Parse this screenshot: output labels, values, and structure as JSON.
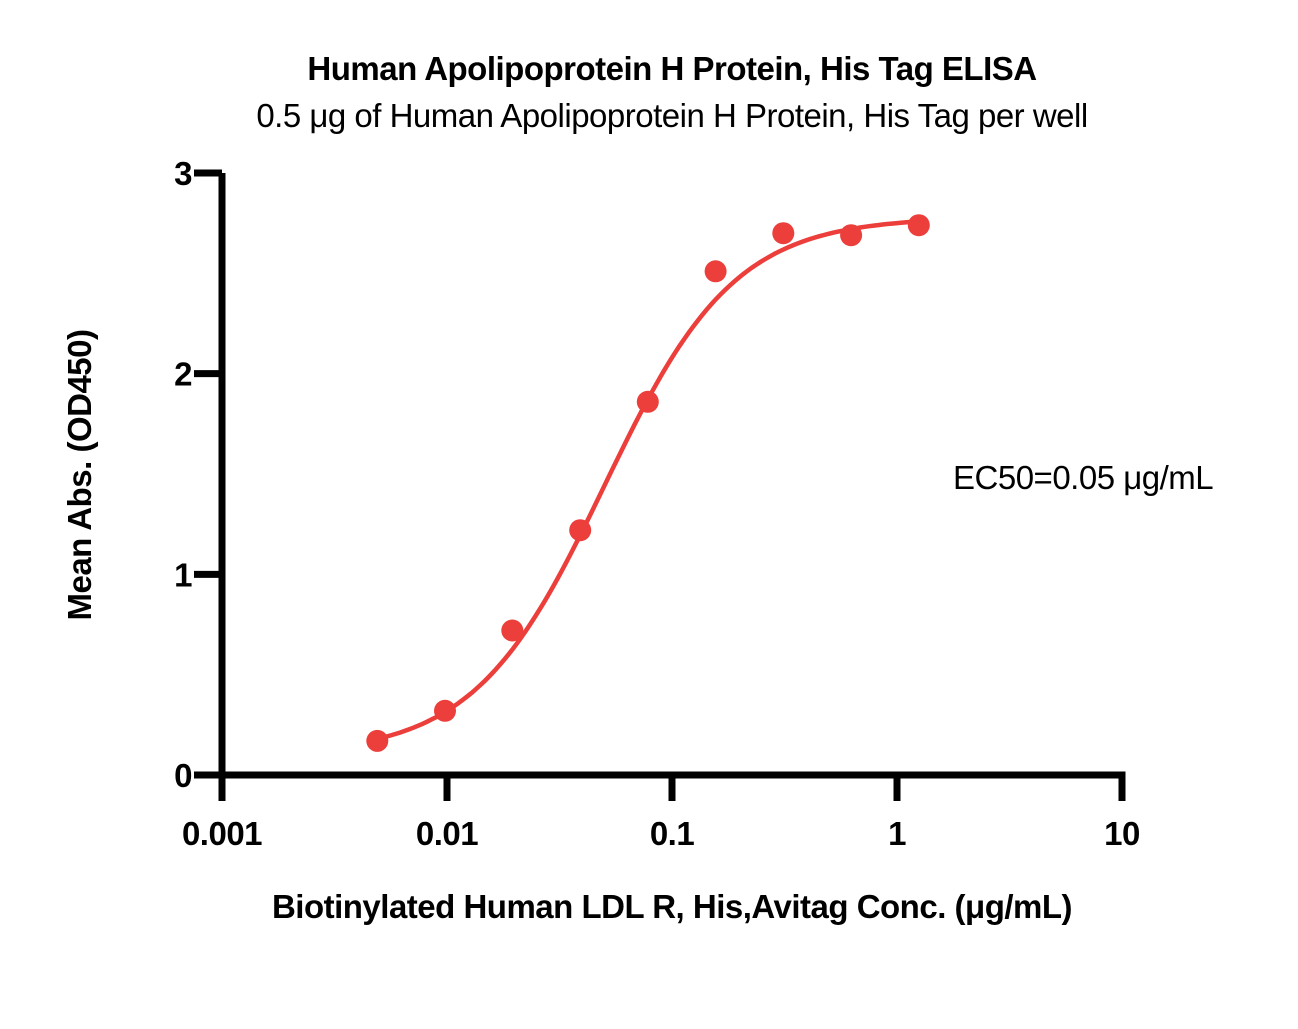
{
  "chart_data": {
    "type": "scatter",
    "title": "Human Apolipoprotein H Protein, His Tag ELISA",
    "subtitle": "0.5 μg of Human Apolipoprotein H Protein, His Tag per well",
    "xlabel": "Biotinylated Human LDL R, His,Avitag Conc. (μg/mL)",
    "ylabel": "Mean Abs. (OD450)",
    "x_scale": "log10",
    "xlim": [
      0.001,
      10
    ],
    "ylim": [
      0,
      3
    ],
    "x_ticks": [
      0.001,
      0.01,
      0.1,
      1,
      10
    ],
    "x_tick_labels": [
      "0.001",
      "0.01",
      "0.1",
      "1",
      "10"
    ],
    "y_ticks": [
      0,
      1,
      2,
      3
    ],
    "y_tick_labels": [
      "0",
      "1",
      "2",
      "3"
    ],
    "grid": false,
    "legend": false,
    "series": [
      {
        "name": "Biotinylated Human LDL R, His,Avitag",
        "x": [
          0.0049,
          0.0098,
          0.0195,
          0.0391,
          0.0781,
          0.1563,
          0.3125,
          0.625,
          1.25
        ],
        "y": [
          0.17,
          0.32,
          0.72,
          1.22,
          1.86,
          2.51,
          2.7,
          2.69,
          2.74
        ]
      }
    ],
    "fit_curve": {
      "model": "4PL",
      "bottom": 0.1,
      "top": 2.78,
      "ec50": 0.05,
      "hill": 1.5,
      "x_start": 0.0049,
      "x_end": 1.25
    },
    "annotation": {
      "text": "EC50=0.05 μg/mL",
      "ec50_value": "0.05"
    },
    "point_color": "#EC3E3A",
    "curve_color": "#EC3E3A",
    "axis_color": "#000000",
    "background_color": "#FFFFFF"
  }
}
